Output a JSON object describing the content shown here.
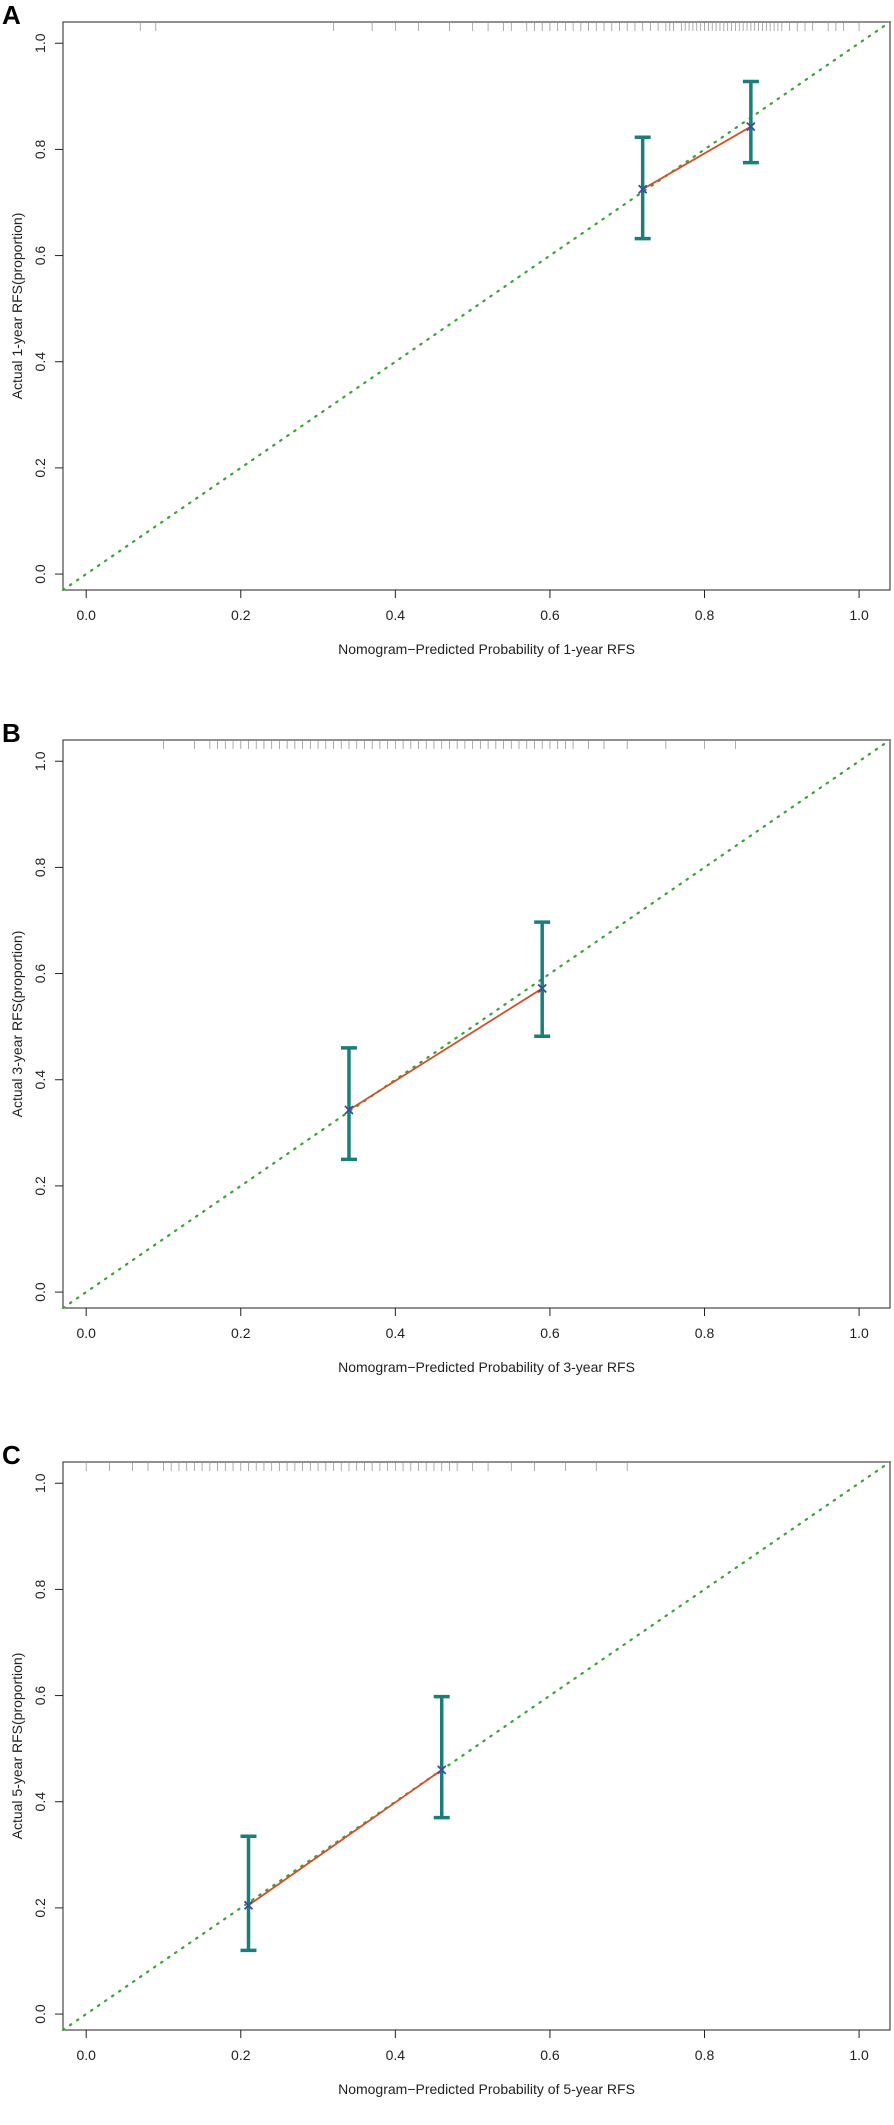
{
  "chart_data": [
    {
      "type": "scatter",
      "panel_label": "A",
      "title": "",
      "xlabel": "Nomogram−Predicted Probability of 1-year RFS",
      "ylabel": "Actual 1-year RFS(proportion)",
      "xlim": [
        -0.03,
        1.04
      ],
      "ylim": [
        -0.03,
        1.04
      ],
      "xticks": [
        "0.0",
        "0.2",
        "0.4",
        "0.6",
        "0.8",
        "1.0"
      ],
      "yticks": [
        "0.0",
        "0.2",
        "0.4",
        "0.6",
        "0.8",
        "1.0"
      ],
      "tick_values": [
        0,
        0.2,
        0.4,
        0.6,
        0.8,
        1.0
      ],
      "grid": false,
      "reference_line": {
        "name": "ideal",
        "from": [
          -0.03,
          -0.03
        ],
        "to": [
          1.04,
          1.04
        ],
        "color": "#3aa336"
      },
      "series": [
        {
          "name": "observed",
          "color": "#d2502a",
          "points": [
            {
              "x": 0.72,
              "y": 0.725,
              "lower": 0.632,
              "upper": 0.823
            },
            {
              "x": 0.86,
              "y": 0.843,
              "lower": 0.775,
              "upper": 0.928
            }
          ]
        }
      ],
      "rug": [
        0.07,
        0.09,
        0.32,
        0.37,
        0.4,
        0.43,
        0.47,
        0.5,
        0.52,
        0.54,
        0.55,
        0.57,
        0.58,
        0.59,
        0.6,
        0.61,
        0.62,
        0.63,
        0.64,
        0.65,
        0.66,
        0.67,
        0.68,
        0.69,
        0.7,
        0.71,
        0.72,
        0.73,
        0.74,
        0.75,
        0.755,
        0.76,
        0.77,
        0.775,
        0.78,
        0.785,
        0.79,
        0.795,
        0.8,
        0.805,
        0.81,
        0.815,
        0.82,
        0.825,
        0.83,
        0.835,
        0.84,
        0.845,
        0.85,
        0.855,
        0.86,
        0.865,
        0.87,
        0.875,
        0.88,
        0.885,
        0.89,
        0.895,
        0.9,
        0.91,
        0.92,
        0.93,
        0.94,
        0.96,
        0.97,
        0.98,
        1.0
      ]
    },
    {
      "type": "scatter",
      "panel_label": "B",
      "title": "",
      "xlabel": "Nomogram−Predicted Probability of 3-year RFS",
      "ylabel": "Actual 3-year RFS(proportion)",
      "xlim": [
        -0.03,
        1.04
      ],
      "ylim": [
        -0.03,
        1.04
      ],
      "xticks": [
        "0.0",
        "0.2",
        "0.4",
        "0.6",
        "0.8",
        "1.0"
      ],
      "yticks": [
        "0.0",
        "0.2",
        "0.4",
        "0.6",
        "0.8",
        "1.0"
      ],
      "tick_values": [
        0,
        0.2,
        0.4,
        0.6,
        0.8,
        1.0
      ],
      "grid": false,
      "reference_line": {
        "name": "ideal",
        "from": [
          -0.03,
          -0.03
        ],
        "to": [
          1.04,
          1.04
        ],
        "color": "#3aa336"
      },
      "series": [
        {
          "name": "observed",
          "color": "#d2502a",
          "points": [
            {
              "x": 0.34,
              "y": 0.343,
              "lower": 0.25,
              "upper": 0.46
            },
            {
              "x": 0.59,
              "y": 0.572,
              "lower": 0.482,
              "upper": 0.697
            }
          ]
        }
      ],
      "rug": [
        0.1,
        0.14,
        0.16,
        0.17,
        0.18,
        0.19,
        0.2,
        0.21,
        0.22,
        0.23,
        0.24,
        0.25,
        0.26,
        0.27,
        0.28,
        0.29,
        0.3,
        0.31,
        0.32,
        0.33,
        0.34,
        0.35,
        0.36,
        0.37,
        0.38,
        0.39,
        0.4,
        0.41,
        0.42,
        0.43,
        0.44,
        0.45,
        0.46,
        0.47,
        0.48,
        0.49,
        0.5,
        0.51,
        0.52,
        0.53,
        0.54,
        0.55,
        0.56,
        0.57,
        0.58,
        0.59,
        0.6,
        0.61,
        0.62,
        0.63,
        0.65,
        0.67,
        0.7,
        0.75,
        0.8,
        0.84
      ]
    },
    {
      "type": "scatter",
      "panel_label": "C",
      "title": "",
      "xlabel": "Nomogram−Predicted Probability of 5-year RFS",
      "ylabel": "Actual 5-year RFS(proportion)",
      "xlim": [
        -0.03,
        1.04
      ],
      "ylim": [
        -0.03,
        1.04
      ],
      "xticks": [
        "0.0",
        "0.2",
        "0.4",
        "0.6",
        "0.8",
        "1.0"
      ],
      "yticks": [
        "0.0",
        "0.2",
        "0.4",
        "0.6",
        "0.8",
        "1.0"
      ],
      "tick_values": [
        0,
        0.2,
        0.4,
        0.6,
        0.8,
        1.0
      ],
      "grid": false,
      "reference_line": {
        "name": "ideal",
        "from": [
          -0.03,
          -0.03
        ],
        "to": [
          1.04,
          1.04
        ],
        "color": "#3aa336"
      },
      "series": [
        {
          "name": "observed",
          "color": "#d2502a",
          "points": [
            {
              "x": 0.21,
              "y": 0.205,
              "lower": 0.12,
              "upper": 0.335
            },
            {
              "x": 0.46,
              "y": 0.46,
              "lower": 0.37,
              "upper": 0.598
            }
          ]
        }
      ],
      "rug": [
        0.0,
        0.03,
        0.06,
        0.08,
        0.1,
        0.11,
        0.12,
        0.13,
        0.14,
        0.15,
        0.16,
        0.17,
        0.18,
        0.19,
        0.2,
        0.21,
        0.22,
        0.23,
        0.24,
        0.25,
        0.26,
        0.27,
        0.28,
        0.29,
        0.3,
        0.31,
        0.32,
        0.33,
        0.34,
        0.35,
        0.36,
        0.37,
        0.38,
        0.39,
        0.4,
        0.41,
        0.42,
        0.43,
        0.44,
        0.45,
        0.46,
        0.47,
        0.48,
        0.5,
        0.52,
        0.55,
        0.58,
        0.62,
        0.66,
        0.7
      ]
    }
  ],
  "colors": {
    "ideal_line": "#3aa336",
    "observed_line": "#d2502a",
    "error_bar": "#1a7f7a",
    "marker": "#3a4f9c",
    "rug": "#999999",
    "axis": "#222222"
  }
}
